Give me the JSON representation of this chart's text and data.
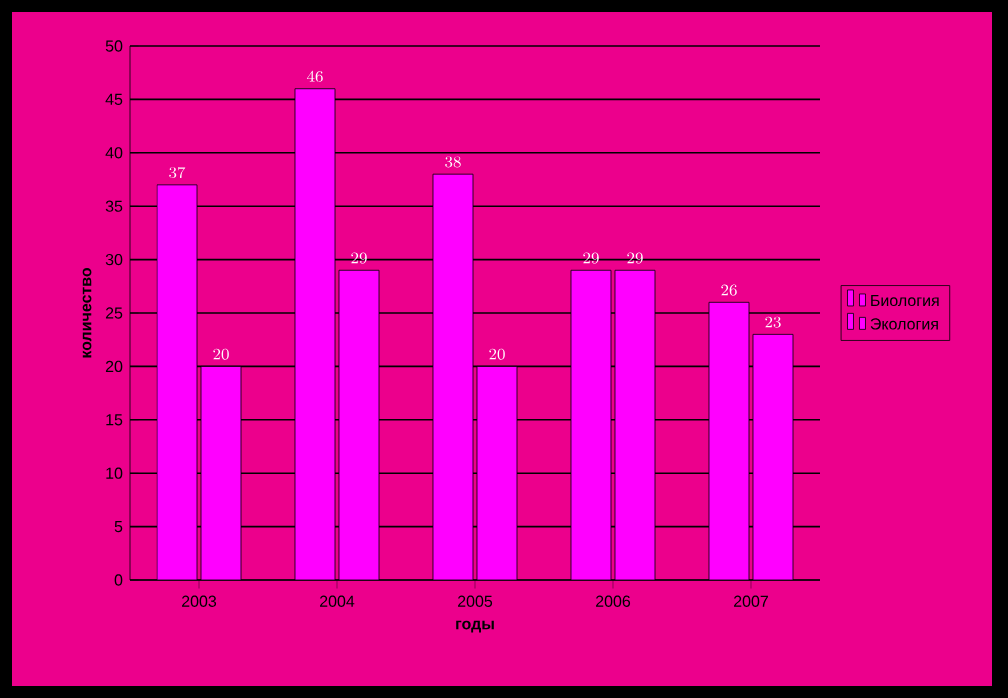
{
  "chart_data": {
    "type": "bar",
    "xlabel": "годы",
    "ylabel": "количество",
    "categories": [
      "2003",
      "2004",
      "2005",
      "2006",
      "2007"
    ],
    "series": [
      {
        "name": "Биология",
        "color": "#ff00ff",
        "values": [
          37,
          46,
          38,
          29,
          26
        ]
      },
      {
        "name": "Экология",
        "color": "#ff00ff",
        "values": [
          20,
          29,
          20,
          29,
          23
        ]
      }
    ],
    "ylim": [
      0,
      50
    ],
    "yticks": [
      0,
      5,
      10,
      15,
      20,
      25,
      30,
      35,
      40,
      45,
      50
    ],
    "grid": "y",
    "legend": "right",
    "data_labels": true
  }
}
